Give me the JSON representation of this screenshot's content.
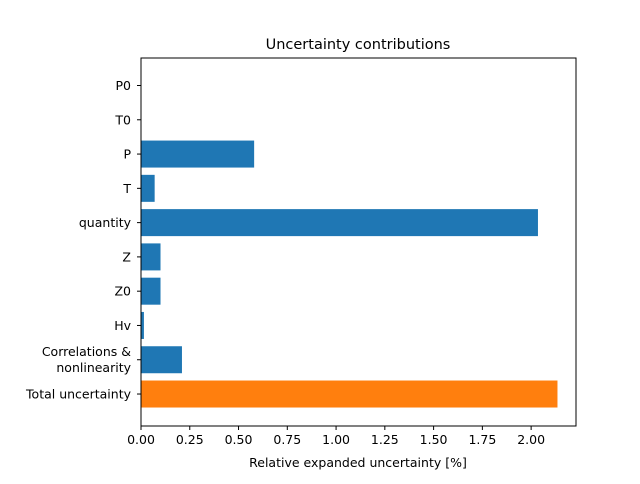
{
  "chart_data": {
    "type": "bar",
    "orientation": "horizontal",
    "title": "Uncertainty contributions",
    "xlabel": "Relative expanded uncertainty [%]",
    "ylabel": "",
    "xlim": [
      0,
      2.23
    ],
    "x_ticks": [
      0.0,
      0.25,
      0.5,
      0.75,
      1.0,
      1.25,
      1.5,
      1.75,
      2.0
    ],
    "x_tick_labels": [
      "0.00",
      "0.25",
      "0.50",
      "0.75",
      "1.00",
      "1.25",
      "1.50",
      "1.75",
      "2.00"
    ],
    "grid": false,
    "legend": "none",
    "bars": [
      {
        "label": [
          "P0"
        ],
        "value": 0.0,
        "color": "#1f77b4"
      },
      {
        "label": [
          "T0"
        ],
        "value": 0.0,
        "color": "#1f77b4"
      },
      {
        "label": [
          "P"
        ],
        "value": 0.58,
        "color": "#1f77b4"
      },
      {
        "label": [
          "T"
        ],
        "value": 0.07,
        "color": "#1f77b4"
      },
      {
        "label": [
          "quantity"
        ],
        "value": 2.035,
        "color": "#1f77b4"
      },
      {
        "label": [
          "Z"
        ],
        "value": 0.1,
        "color": "#1f77b4"
      },
      {
        "label": [
          "Z0"
        ],
        "value": 0.1,
        "color": "#1f77b4"
      },
      {
        "label": [
          "Hv"
        ],
        "value": 0.015,
        "color": "#1f77b4"
      },
      {
        "label": [
          "Correlations &",
          "nonlinearity"
        ],
        "value": 0.21,
        "color": "#1f77b4"
      },
      {
        "label": [
          "Total uncertainty"
        ],
        "value": 2.135,
        "color": "#ff7f0e"
      }
    ]
  }
}
